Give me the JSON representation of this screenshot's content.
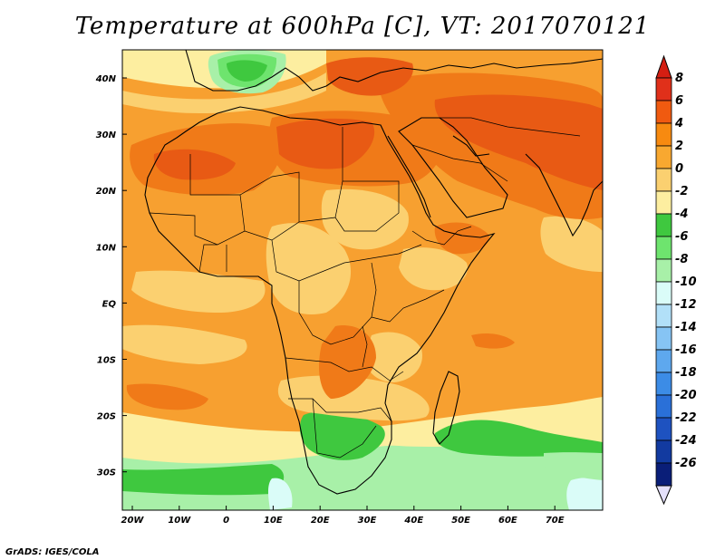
{
  "title": "Temperature at 600hPa [C], VT: 2017070121",
  "credit": "GrADS: IGES/COLA",
  "lon_labels": [
    "20W",
    "10W",
    "0",
    "10E",
    "20E",
    "30E",
    "40E",
    "50E",
    "60E",
    "70E"
  ],
  "lat_labels": [
    "40N",
    "30N",
    "20N",
    "10N",
    "EQ",
    "10S",
    "20S",
    "30S"
  ],
  "colorbar": {
    "labels": [
      "8",
      "6",
      "4",
      "2",
      "0",
      "-2",
      "-4",
      "-6",
      "-8",
      "-10",
      "-12",
      "-14",
      "-16",
      "-18",
      "-20",
      "-22",
      "-24",
      "-26"
    ],
    "colors": [
      "#e0301a",
      "#f05a10",
      "#f78a10",
      "#f8a830",
      "#fbd070",
      "#fdeea0",
      "#3fc83f",
      "#6ee46e",
      "#a8f0a8",
      "#dafcf8",
      "#b2e0f8",
      "#86c4f4",
      "#5ea8ee",
      "#3c8ce6",
      "#2a70d8",
      "#1e52c0",
      "#123aa0",
      "#0a1e78"
    ],
    "top_arrow": "#d41e12",
    "bottom_arrow": "#e4e0fa"
  },
  "field_colors": {
    "background": "#f7a030",
    "warm_yellow": "#fbd070",
    "pale_yellow": "#fdeea0",
    "hot_orange": "#f07a18",
    "red_orange": "#e85a14",
    "green": "#3fc83f",
    "light_green": "#6ee46e",
    "pale_green": "#a8f0a8",
    "cyan": "#dafcf8"
  }
}
